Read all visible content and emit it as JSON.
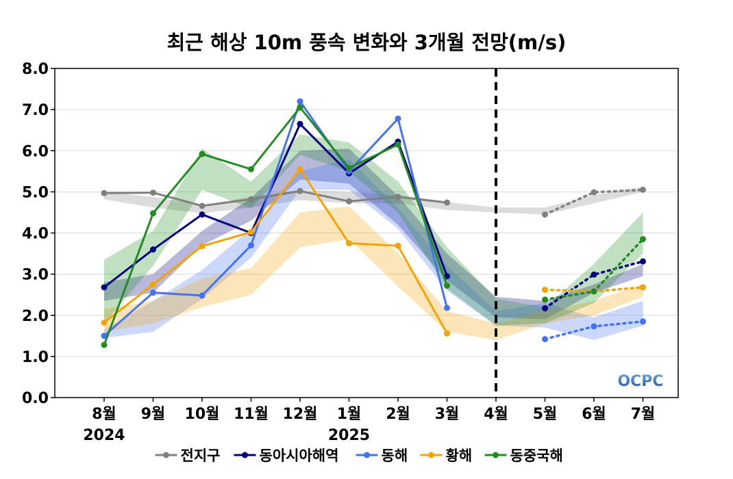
{
  "chart_data": {
    "type": "line",
    "title": "최근 해상 10m 풍속 변화와 3개월 전망(m/s)",
    "categories": [
      "8월",
      "9월",
      "10월",
      "11월",
      "12월",
      "1월",
      "2월",
      "3월",
      "4월",
      "5월",
      "6월",
      "7월"
    ],
    "year_labels": [
      {
        "category": "8월",
        "label": "2024"
      },
      {
        "category": "1월",
        "label": "2025"
      }
    ],
    "ylim": [
      0,
      8
    ],
    "yticks": [
      "0.0",
      "1.0",
      "2.0",
      "3.0",
      "4.0",
      "5.0",
      "6.0",
      "7.0",
      "8.0"
    ],
    "grid": true,
    "legend_position": "bottom",
    "divider_after": "4월",
    "logo_text": "OCPC",
    "series": [
      {
        "name": "전지구",
        "color": "#808080",
        "observed": [
          4.97,
          4.98,
          4.66,
          4.82,
          5.02,
          4.77,
          4.88,
          4.74,
          null,
          null,
          null,
          null
        ],
        "forecast": [
          null,
          null,
          null,
          null,
          null,
          null,
          null,
          null,
          null,
          4.45,
          4.99,
          5.05
        ],
        "band_low": [
          4.82,
          4.62,
          4.48,
          4.62,
          4.8,
          4.72,
          4.72,
          4.56,
          4.5,
          4.45,
          4.72,
          5.0
        ],
        "band_high": [
          5.0,
          4.88,
          4.68,
          4.88,
          5.05,
          5.0,
          4.92,
          4.75,
          4.62,
          4.62,
          4.92,
          5.12
        ]
      },
      {
        "name": "동아시아해역",
        "color": "#00007f",
        "observed": [
          2.68,
          3.6,
          4.45,
          4.0,
          6.65,
          5.45,
          6.22,
          2.95,
          null,
          null,
          null,
          null
        ],
        "forecast": [
          null,
          null,
          null,
          null,
          null,
          null,
          null,
          null,
          null,
          2.17,
          2.99,
          3.31
        ],
        "band_low": [
          2.35,
          2.55,
          3.7,
          4.3,
          5.3,
          5.2,
          4.2,
          2.85,
          1.95,
          1.9,
          2.55,
          2.95
        ],
        "band_high": [
          2.8,
          3.0,
          4.05,
          4.85,
          6.0,
          6.05,
          4.9,
          3.5,
          2.45,
          2.35,
          2.75,
          3.25
        ]
      },
      {
        "name": "동해",
        "color": "#4472f4",
        "observed": [
          1.5,
          2.55,
          2.48,
          3.7,
          7.2,
          5.5,
          6.78,
          2.18,
          null,
          null,
          null,
          null
        ],
        "forecast": [
          null,
          null,
          null,
          null,
          null,
          null,
          null,
          null,
          null,
          1.42,
          1.73,
          1.85
        ],
        "band_low": [
          1.45,
          1.6,
          2.4,
          3.4,
          5.05,
          5.05,
          4.1,
          2.6,
          1.75,
          1.7,
          1.4,
          1.75
        ],
        "band_high": [
          1.65,
          2.35,
          3.1,
          4.1,
          5.5,
          5.8,
          4.6,
          3.2,
          2.1,
          2.3,
          1.95,
          2.35
        ]
      },
      {
        "name": "황해",
        "color": "#f5a300",
        "observed": [
          1.82,
          2.75,
          3.68,
          4.02,
          5.55,
          3.75,
          3.69,
          1.56,
          null,
          null,
          null,
          null
        ],
        "forecast": [
          null,
          null,
          null,
          null,
          null,
          null,
          null,
          null,
          null,
          2.62,
          2.58,
          2.68
        ],
        "band_low": [
          1.6,
          1.8,
          2.2,
          2.5,
          3.65,
          3.85,
          2.7,
          1.6,
          1.4,
          1.8,
          2.0,
          2.45
        ],
        "band_high": [
          2.15,
          2.35,
          2.9,
          3.15,
          4.5,
          4.65,
          3.5,
          2.1,
          1.8,
          2.1,
          2.35,
          2.75
        ]
      },
      {
        "name": "동중국해",
        "color": "#228b22",
        "observed": [
          1.28,
          4.48,
          5.92,
          5.55,
          7.05,
          5.58,
          6.15,
          2.72,
          null,
          null,
          null,
          null
        ],
        "forecast": [
          null,
          null,
          null,
          null,
          null,
          null,
          null,
          null,
          null,
          2.38,
          2.58,
          3.85
        ],
        "band_low": [
          1.8,
          3.2,
          5.05,
          4.6,
          5.9,
          5.5,
          4.5,
          2.65,
          1.75,
          1.8,
          2.3,
          3.5
        ],
        "band_high": [
          3.35,
          4.05,
          6.05,
          5.25,
          6.4,
          6.2,
          5.25,
          3.65,
          2.4,
          2.2,
          3.25,
          4.5
        ]
      }
    ]
  }
}
